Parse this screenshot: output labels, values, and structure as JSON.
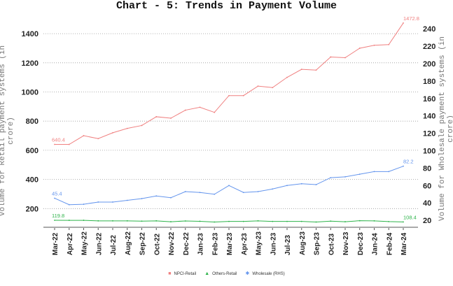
{
  "chart": {
    "title": "Chart - 5: Trends in Payment Volume",
    "ylabel_left": "Volume for Retail payment systems (in crore)",
    "ylabel_right": "Volume for Wholesale payment systems (in crore)"
  },
  "legend": [
    {
      "label": "NPCI-Retail",
      "color": "#f08080",
      "marker": "■"
    },
    {
      "label": "Others-Retail",
      "color": "#2db34a",
      "marker": "▲"
    },
    {
      "label": "Wholesale (RHS)",
      "color": "#6495ed",
      "marker": "✱"
    }
  ],
  "chart_data": {
    "type": "line",
    "title": "Chart - 5: Trends in Payment Volume",
    "xlabel": "",
    "ylabel": "Volume for Retail payment systems (in crore)",
    "ylabel_right": "Volume for Wholesale payment systems (in crore)",
    "categories": [
      "Mar-22",
      "Apr-22",
      "May-22",
      "Jun-22",
      "Jul-22",
      "Aug-22",
      "Sep-22",
      "Oct-22",
      "Nov-22",
      "Dec-22",
      "Jan-23",
      "Feb-23",
      "Mar-23",
      "Apr-23",
      "May-23",
      "Jun-23",
      "Jul-23",
      "Aug-23",
      "Sep-23",
      "Oct-23",
      "Nov-23",
      "Dec-23",
      "Jan-24",
      "Feb-24",
      "Mar-24"
    ],
    "left_axis": {
      "ticks": [
        200,
        400,
        600,
        800,
        1000,
        1200,
        1400
      ],
      "ylim": [
        100,
        1500
      ]
    },
    "right_axis": {
      "ticks": [
        20,
        40,
        60,
        80,
        100,
        120,
        140,
        160,
        180,
        200,
        220,
        240
      ],
      "ylim": [
        12,
        248
      ]
    },
    "grid": "horizontal dotted",
    "legend_position": "bottom",
    "series": [
      {
        "name": "NPCI-Retail",
        "axis": "left",
        "color": "#f08080",
        "values": [
          640.4,
          640,
          700,
          680,
          720,
          750,
          770,
          830,
          820,
          875,
          895,
          860,
          975,
          975,
          1040,
          1030,
          1100,
          1155,
          1150,
          1240,
          1235,
          1300,
          1320,
          1325,
          1472.8
        ],
        "labels": {
          "first": "640.4",
          "last": "1472.8"
        }
      },
      {
        "name": "Others-Retail",
        "axis": "left",
        "color": "#2db34a",
        "values": [
          119.8,
          119.5,
          119.5,
          116,
          116,
          116,
          114,
          116,
          110,
          115,
          113,
          108,
          112,
          112,
          116,
          112,
          112,
          112,
          108,
          114,
          110,
          117,
          116,
          111,
          108.4
        ],
        "labels": {
          "first": "119.8",
          "last": "108.4"
        }
      },
      {
        "name": "Wholesale (RHS)",
        "axis": "right",
        "color": "#6495ed",
        "values": [
          45.4,
          38,
          38.5,
          41,
          41,
          43,
          45,
          48,
          46,
          53,
          52,
          50,
          60,
          52,
          53,
          56,
          60,
          62,
          61,
          69,
          70,
          73,
          76,
          76,
          82.2
        ],
        "labels": {
          "first": "45.4",
          "last": "82.2"
        }
      }
    ]
  }
}
